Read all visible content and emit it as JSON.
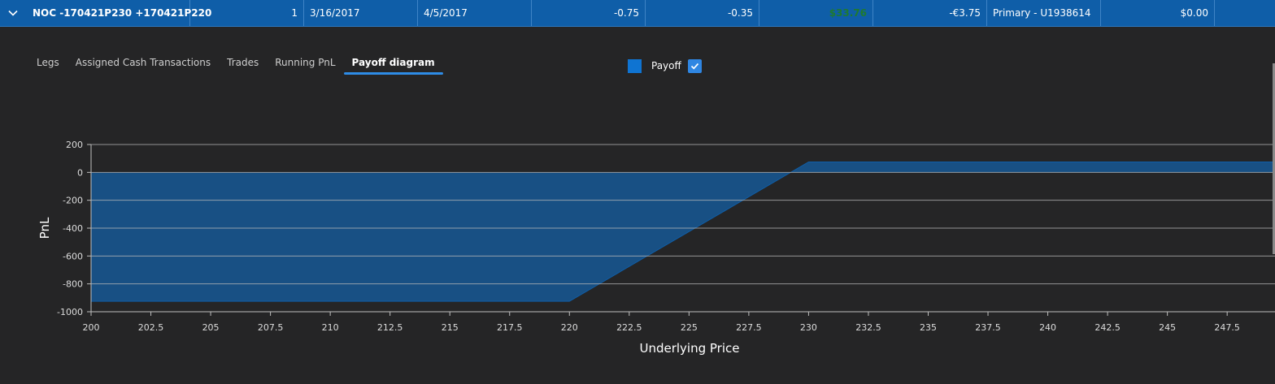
{
  "row": {
    "name": "NOC -170421P230 +170421P220",
    "quantity": "1",
    "open_date": "3/16/2017",
    "expiry_date": "4/5/2017",
    "value1": "-0.75",
    "value2": "-0.35",
    "pnl": "$33.76",
    "fees": "-€3.75",
    "account": "Primary - U1938614",
    "amount": "$0.00",
    "colors": {
      "row_bg": "#0f5ea8",
      "pnl_text": "#1f7a2f"
    }
  },
  "tabs": [
    {
      "label": "Legs",
      "active": false
    },
    {
      "label": "Assigned Cash Transactions",
      "active": false
    },
    {
      "label": "Trades",
      "active": false
    },
    {
      "label": "Running PnL",
      "active": false
    },
    {
      "label": "Payoff diagram",
      "active": true
    }
  ],
  "legend": {
    "label": "Payoff",
    "checked": true,
    "color": "#0f74d2"
  },
  "chart_data": {
    "type": "area",
    "xlabel": "Underlying Price",
    "ylabel": "PnL",
    "xlim": [
      200,
      249.5
    ],
    "ylim": [
      -1000,
      200
    ],
    "xticks": [
      "200",
      "202.5",
      "205",
      "207.5",
      "210",
      "212.5",
      "215",
      "217.5",
      "220",
      "222.5",
      "225",
      "227.5",
      "230",
      "232.5",
      "235",
      "237.5",
      "240",
      "242.5",
      "245",
      "247.5"
    ],
    "yticks": [
      "200",
      "0",
      "-200",
      "-400",
      "-600",
      "-800",
      "-1000"
    ],
    "grid": true,
    "legend_position": "top",
    "series": [
      {
        "name": "Payoff",
        "x": [
          200,
          220,
          230,
          249.5
        ],
        "y": [
          -925,
          -925,
          75,
          75
        ]
      }
    ]
  }
}
